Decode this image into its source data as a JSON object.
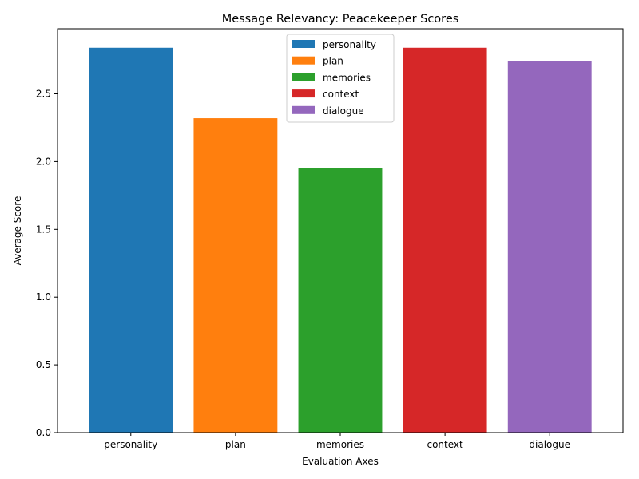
{
  "chart_data": {
    "type": "bar",
    "title": "Message Relevancy: Peacekeeper Scores",
    "xlabel": "Evaluation Axes",
    "ylabel": "Average Score",
    "categories": [
      "personality",
      "plan",
      "memories",
      "context",
      "dialogue"
    ],
    "values": [
      2.84,
      2.32,
      1.95,
      2.84,
      2.74
    ],
    "colors": [
      "#1f77b4",
      "#ff7f0e",
      "#2ca02c",
      "#d62728",
      "#9467bd"
    ],
    "ylim": [
      0,
      2.98
    ],
    "yticks": [
      0.0,
      0.5,
      1.0,
      1.5,
      2.0,
      2.5
    ],
    "ytick_labels": [
      "0.0",
      "0.5",
      "1.0",
      "1.5",
      "2.0",
      "2.5"
    ],
    "grid": false,
    "legend": {
      "placement": "upper-center",
      "entries": [
        "personality",
        "plan",
        "memories",
        "context",
        "dialogue"
      ]
    }
  }
}
